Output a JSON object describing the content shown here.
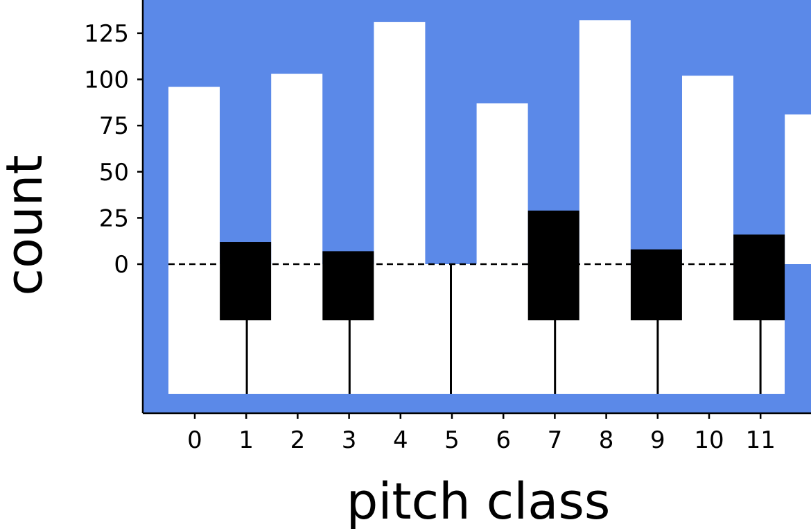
{
  "chart_data": {
    "type": "bar",
    "title": "",
    "xlabel": "pitch class",
    "ylabel": "count",
    "categories": [
      "0",
      "1",
      "2",
      "3",
      "4",
      "5",
      "6",
      "7",
      "8",
      "9",
      "10",
      "11"
    ],
    "values": [
      96,
      12,
      103,
      7,
      131,
      87,
      29,
      132,
      8,
      102,
      16,
      81
    ],
    "key_color": [
      "white",
      "black",
      "white",
      "black",
      "white",
      "white",
      "black",
      "white",
      "black",
      "white",
      "black",
      "white"
    ],
    "yticks": [
      "0",
      "25",
      "50",
      "75",
      "100",
      "125"
    ],
    "ylim": [
      -81,
      142
    ],
    "reference_line": {
      "y": 0,
      "style": "dashed"
    },
    "grid": false,
    "colors": {
      "background": "#5b89e8",
      "white_key": "#ffffff",
      "black_key": "#000000"
    }
  }
}
